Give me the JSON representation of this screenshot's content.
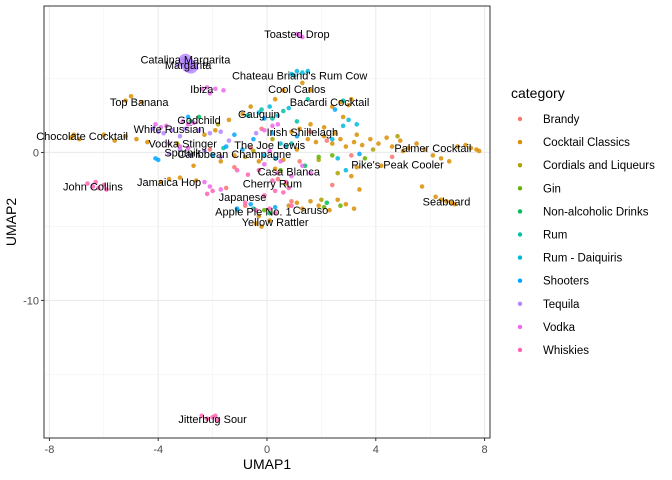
{
  "chart_data": {
    "type": "scatter",
    "xlabel": "UMAP1",
    "ylabel": "UMAP2",
    "xlim": [
      -8.2,
      8.2
    ],
    "ylim": [
      -19.3,
      9.9
    ],
    "xticks": [
      -8,
      -4,
      0,
      4,
      8
    ],
    "xtick_labels": [
      "-8",
      "-4",
      "0",
      "4",
      "8"
    ],
    "yticks": [
      -10,
      0
    ],
    "ytick_labels": [
      "-10",
      "0"
    ],
    "grid": true,
    "legend_title": "category",
    "legend_position": "right",
    "categories": [
      "Brandy",
      "Cocktail Classics",
      "Cordials and Liqueurs",
      "Gin",
      "Non-alcoholic Drinks",
      "Rum",
      "Rum - Daiquiris",
      "Shooters",
      "Tequila",
      "Vodka",
      "Whiskies"
    ],
    "colors": [
      "#F8766D",
      "#DB8E00",
      "#AEA200",
      "#64B200",
      "#00BD5C",
      "#00C1A7",
      "#00BADE",
      "#00A6FF",
      "#B385FF",
      "#EF67EB",
      "#FF63B6"
    ],
    "series": [
      {
        "name": "Brandy",
        "points": [
          [
            -2.1,
            0.2
          ],
          [
            -1.2,
            -1.0
          ],
          [
            -0.6,
            0.3
          ],
          [
            0.4,
            -1.8
          ],
          [
            1.2,
            -0.6
          ],
          [
            1.6,
            1.4
          ],
          [
            2.4,
            -2.2
          ],
          [
            -1.5,
            -2.4
          ],
          [
            0.9,
            -3.3
          ],
          [
            3.1,
            -0.2
          ],
          [
            -0.2,
            1.6
          ],
          [
            2.2,
            0.8
          ],
          [
            4.6,
            -0.3
          ],
          [
            -0.8,
            -3.6
          ]
        ]
      },
      {
        "name": "Cocktail Classics",
        "points": [
          [
            -7.2,
            1.0
          ],
          [
            -7.1,
            1.2
          ],
          [
            -6.9,
            0.9
          ],
          [
            -6.0,
            1.2
          ],
          [
            -5.6,
            0.8
          ],
          [
            -5.2,
            1.1
          ],
          [
            -4.8,
            0.9
          ],
          [
            -4.4,
            0.7
          ],
          [
            -5.2,
            3.5
          ],
          [
            -5.0,
            3.8
          ],
          [
            -4.6,
            3.4
          ],
          [
            -3.9,
            -2.0
          ],
          [
            -3.6,
            -1.8
          ],
          [
            -3.2,
            -1.7
          ],
          [
            -2.6,
            -1.9
          ],
          [
            1.5,
            0.9
          ],
          [
            1.8,
            0.7
          ],
          [
            2.1,
            1.1
          ],
          [
            2.4,
            0.6
          ],
          [
            2.7,
            0.9
          ],
          [
            2.9,
            0.4
          ],
          [
            3.2,
            0.7
          ],
          [
            3.3,
            1.2
          ],
          [
            3.5,
            0.5
          ],
          [
            3.8,
            0.9
          ],
          [
            4.1,
            0.6
          ],
          [
            4.4,
            1.0
          ],
          [
            4.6,
            0.4
          ],
          [
            4.9,
            0.8
          ],
          [
            5.2,
            0.3
          ],
          [
            5.5,
            0.6
          ],
          [
            5.8,
            0.2
          ],
          [
            6.1,
            -0.2
          ],
          [
            6.4,
            -0.4
          ],
          [
            6.7,
            -0.6
          ],
          [
            7.0,
            0.4
          ],
          [
            7.3,
            0.5
          ],
          [
            7.5,
            0.3
          ],
          [
            7.7,
            0.2
          ],
          [
            7.8,
            0.1
          ],
          [
            6.2,
            -3.0
          ],
          [
            6.4,
            -3.2
          ],
          [
            6.6,
            -3.3
          ],
          [
            6.8,
            -3.4
          ],
          [
            6.9,
            -3.5
          ],
          [
            5.7,
            -2.3
          ],
          [
            3.3,
            -1.0
          ],
          [
            3.1,
            -1.6
          ],
          [
            3.4,
            -2.5
          ],
          [
            3.2,
            -3.8
          ],
          [
            2.9,
            -3.5
          ],
          [
            2.6,
            -3.2
          ],
          [
            2.3,
            -3.9
          ],
          [
            1.9,
            -3.6
          ],
          [
            1.6,
            -3.3
          ],
          [
            1.3,
            -3.8
          ],
          [
            1.1,
            -3.4
          ],
          [
            0.8,
            -3.6
          ],
          [
            -0.3,
            -4.3
          ],
          [
            -0.4,
            -4.8
          ],
          [
            -0.2,
            -5.0
          ],
          [
            0.1,
            -4.6
          ],
          [
            -0.8,
            -0.3
          ],
          [
            -0.3,
            -0.6
          ],
          [
            0.3,
            -1.1
          ],
          [
            0.6,
            -0.5
          ],
          [
            1.1,
            0.2
          ],
          [
            0.9,
            1.4
          ],
          [
            1.2,
            1.6
          ],
          [
            1.6,
            1.9
          ],
          [
            2.1,
            1.7
          ],
          [
            2.5,
            1.3
          ],
          [
            2.8,
            2.4
          ],
          [
            3.0,
            3.2
          ],
          [
            3.1,
            3.6
          ],
          [
            2.7,
            3.4
          ],
          [
            2.4,
            3.1
          ],
          [
            1.6,
            4.2
          ],
          [
            1.3,
            4.7
          ],
          [
            0.6,
            4.2
          ],
          [
            0.3,
            3.6
          ],
          [
            -0.6,
            3.1
          ],
          [
            -0.9,
            2.6
          ],
          [
            -1.4,
            2.2
          ],
          [
            -1.9,
            1.5
          ],
          [
            -2.3,
            1.2
          ],
          [
            -1.7,
            -0.6
          ],
          [
            -1.2,
            -0.2
          ],
          [
            -2.7,
            -0.9
          ],
          [
            4.2,
            -0.9
          ],
          [
            5.0,
            0.1
          ]
        ]
      },
      {
        "name": "Cordials and Liqueurs",
        "points": [
          [
            -0.5,
            0.1
          ],
          [
            0.2,
            0.9
          ],
          [
            1.9,
            -0.5
          ],
          [
            2.6,
            -1.4
          ],
          [
            3.9,
            0.2
          ],
          [
            -1.8,
            1.9
          ],
          [
            0.7,
            -2.1
          ],
          [
            2.0,
            -3.2
          ],
          [
            -3.3,
            0.6
          ],
          [
            4.8,
            1.1
          ]
        ]
      },
      {
        "name": "Gin",
        "points": [
          [
            1.9,
            -0.3
          ],
          [
            2.4,
            -0.2
          ],
          [
            2.7,
            -3.6
          ],
          [
            0.5,
            -1.2
          ],
          [
            -0.1,
            -3.9
          ],
          [
            3.6,
            -0.4
          ],
          [
            2.1,
            -3.7
          ]
        ]
      },
      {
        "name": "Non-alcoholic Drinks",
        "points": [
          [
            -2.8,
            2.1
          ],
          [
            -2.5,
            2.4
          ],
          [
            1.4,
            -0.9
          ],
          [
            2.2,
            -3.4
          ],
          [
            0.1,
            -4.1
          ]
        ]
      },
      {
        "name": "Rum",
        "points": [
          [
            -0.7,
            2.5
          ],
          [
            -0.2,
            2.9
          ],
          [
            0.2,
            2.3
          ],
          [
            0.6,
            2.8
          ],
          [
            1.1,
            2.1
          ],
          [
            1.5,
            3.6
          ],
          [
            2.8,
            3.5
          ],
          [
            -1.6,
            0.3
          ],
          [
            -1.1,
            -3.9
          ],
          [
            -0.5,
            -3.8
          ],
          [
            0.9,
            0.6
          ]
        ]
      },
      {
        "name": "Rum - Daiquiris",
        "points": [
          [
            0.9,
            5.3
          ],
          [
            1.1,
            5.5
          ],
          [
            1.3,
            5.4
          ],
          [
            1.5,
            5.5
          ],
          [
            1.0,
            5.2
          ],
          [
            -0.3,
            2.7
          ],
          [
            0.1,
            3.1
          ],
          [
            0.4,
            2.5
          ],
          [
            0.8,
            3.0
          ],
          [
            0.5,
            0.6
          ],
          [
            0.7,
            0.4
          ],
          [
            3.0,
            2.2
          ],
          [
            3.3,
            1.9
          ],
          [
            2.8,
            1.8
          ],
          [
            2.4,
            0.9
          ],
          [
            2.6,
            -0.4
          ],
          [
            2.9,
            -1.2
          ],
          [
            0.3,
            -0.4
          ],
          [
            -0.1,
            -0.2
          ]
        ]
      },
      {
        "name": "Shooters",
        "points": [
          [
            -1.5,
            0.4
          ],
          [
            -0.9,
            0.2
          ],
          [
            -0.5,
            0.9
          ],
          [
            -1.2,
            1.2
          ],
          [
            -2.0,
            -0.2
          ],
          [
            -4.1,
            -0.4
          ],
          [
            -4.0,
            -0.5
          ],
          [
            0.2,
            1.3
          ],
          [
            1.1,
            1.1
          ],
          [
            3.4,
            -0.1
          ],
          [
            -1.1,
            -3.8
          ],
          [
            -0.6,
            -3.5
          ],
          [
            0.3,
            -3.7
          ],
          [
            2.5,
            2.9
          ],
          [
            -0.1,
            2.3
          ],
          [
            -2.9,
            2.4
          ]
        ]
      },
      {
        "name": "Tequila",
        "points": [
          [
            -3.1,
            6.3
          ],
          [
            -3.0,
            6.0
          ],
          [
            -2.9,
            6.1
          ],
          [
            -2.8,
            5.9
          ],
          [
            -3.0,
            5.8
          ],
          [
            -2.6,
            5.7
          ],
          [
            -3.3,
            5.9
          ],
          [
            -4.2,
            1.6
          ],
          [
            -4.0,
            1.4
          ],
          [
            -3.8,
            1.3
          ],
          [
            -3.5,
            1.5
          ],
          [
            -3.2,
            1.1
          ],
          [
            -3.0,
            1.6
          ],
          [
            -2.5,
            1.5
          ],
          [
            -2.1,
            1.3
          ],
          [
            -1.7,
            1.4
          ],
          [
            -3.6,
            -0.1
          ],
          [
            -3.2,
            0.2
          ],
          [
            -2.8,
            -0.2
          ],
          [
            -2.3,
            0.1
          ],
          [
            -1.7,
            -0.3
          ],
          [
            -0.4,
            1.3
          ],
          [
            -1.4,
            0.8
          ]
        ]
      },
      {
        "name": "Vodka",
        "points": [
          [
            1.1,
            8.0
          ],
          [
            1.2,
            7.9
          ],
          [
            1.3,
            7.8
          ],
          [
            -2.4,
            4.3
          ],
          [
            -2.2,
            4.4
          ],
          [
            -1.9,
            4.3
          ],
          [
            -1.6,
            4.2
          ],
          [
            -3.1,
            2.1
          ],
          [
            -2.9,
            1.9
          ],
          [
            -2.7,
            2.0
          ],
          [
            -4.1,
            1.9
          ],
          [
            -3.9,
            1.7
          ],
          [
            -3.7,
            1.8
          ],
          [
            -3.6,
            0.6
          ],
          [
            -3.2,
            0.4
          ],
          [
            -2.9,
            0.3
          ],
          [
            -0.1,
            1.5
          ],
          [
            0.2,
            1.8
          ],
          [
            0.4,
            1.9
          ],
          [
            0.1,
            0.1
          ],
          [
            -0.1,
            -0.8
          ],
          [
            0.5,
            -0.6
          ],
          [
            -2.3,
            -2.0
          ],
          [
            -2.1,
            -2.3
          ],
          [
            -1.7,
            -2.5
          ],
          [
            1.3,
            -0.9
          ],
          [
            1.6,
            -1.4
          ],
          [
            0.9,
            -1.6
          ],
          [
            -2.1,
            4.0
          ]
        ]
      },
      {
        "name": "Whiskies",
        "points": [
          [
            -6.6,
            -2.1
          ],
          [
            -6.4,
            -2.3
          ],
          [
            -6.2,
            -2.4
          ],
          [
            -6.0,
            -2.2
          ],
          [
            -5.9,
            -2.5
          ],
          [
            -6.3,
            -2.0
          ],
          [
            -2.4,
            -17.8
          ],
          [
            -2.2,
            -18.0
          ],
          [
            -2.0,
            -17.9
          ],
          [
            -1.8,
            -18.1
          ],
          [
            -1.9,
            -17.8
          ],
          [
            -0.1,
            -2.9
          ],
          [
            0.3,
            -2.6
          ],
          [
            0.6,
            -2.7
          ],
          [
            0.8,
            -2.4
          ],
          [
            -2.2,
            -2.8
          ],
          [
            -2.0,
            -2.6
          ],
          [
            -0.8,
            -3.4
          ],
          [
            -0.4,
            -3.9
          ],
          [
            0.1,
            -3.8
          ],
          [
            0.9,
            -3.6
          ],
          [
            0.3,
            -4.1
          ],
          [
            -1.1,
            -1.2
          ],
          [
            -0.7,
            -1.5
          ],
          [
            -0.3,
            -1.2
          ],
          [
            0.4,
            -1.4
          ],
          [
            0.2,
            -1.9
          ],
          [
            0.7,
            -2.0
          ]
        ]
      }
    ],
    "big_points": [
      [
        -3.0,
        6.2
      ],
      [
        -2.9,
        5.9
      ],
      [
        -2.8,
        5.8
      ]
    ],
    "point_labels": [
      {
        "text": "Toasted Drop",
        "x": 1.1,
        "y": 8.0
      },
      {
        "text": "Catalina Margarita",
        "x": -3.0,
        "y": 6.3
      },
      {
        "text": "Margarita",
        "x": -2.9,
        "y": 5.9
      },
      {
        "text": "Chateau Briand's Rum Cow",
        "x": 1.2,
        "y": 5.2
      },
      {
        "text": "Ibiza",
        "x": -2.4,
        "y": 4.3
      },
      {
        "text": "Cool Carlos",
        "x": 1.1,
        "y": 4.3
      },
      {
        "text": "Top Banana",
        "x": -4.7,
        "y": 3.4
      },
      {
        "text": "Bacardi Cocktail",
        "x": 2.3,
        "y": 3.4
      },
      {
        "text": "Gauguin",
        "x": -0.3,
        "y": 2.6
      },
      {
        "text": "Godchild",
        "x": -2.5,
        "y": 2.2
      },
      {
        "text": "White Russian",
        "x": -3.6,
        "y": 1.6
      },
      {
        "text": "Irish Shillelagh",
        "x": 1.3,
        "y": 1.4
      },
      {
        "text": "Chocolate Cocktail",
        "x": -6.8,
        "y": 1.1
      },
      {
        "text": "Palmer Cocktail",
        "x": 6.1,
        "y": 0.3
      },
      {
        "text": "Vodka Stinger",
        "x": -3.1,
        "y": 0.6
      },
      {
        "text": "The Joe Lewis",
        "x": 0.1,
        "y": 0.5
      },
      {
        "text": "Sputnik",
        "x": -3.1,
        "y": 0.0
      },
      {
        "text": "Caribbean Champagne",
        "x": -1.2,
        "y": -0.1
      },
      {
        "text": "Pike's Peak Cooler",
        "x": 4.8,
        "y": -0.8
      },
      {
        "text": "Casa Blanca",
        "x": 0.8,
        "y": -1.3
      },
      {
        "text": "John Collins",
        "x": -6.4,
        "y": -2.3
      },
      {
        "text": "Jamaica Hop",
        "x": -3.6,
        "y": -2.0
      },
      {
        "text": "Cherry Rum",
        "x": 0.2,
        "y": -2.1
      },
      {
        "text": "Japanese",
        "x": -0.9,
        "y": -3.0
      },
      {
        "text": "Seaboard",
        "x": 6.6,
        "y": -3.3
      },
      {
        "text": "Apple Pie No. 1",
        "x": -0.5,
        "y": -4.0
      },
      {
        "text": "Caruso",
        "x": 1.6,
        "y": -3.9
      },
      {
        "text": "Yellow Rattler",
        "x": 0.3,
        "y": -4.7
      },
      {
        "text": "Jitterbug Sour",
        "x": -2.0,
        "y": -18.0
      }
    ]
  }
}
